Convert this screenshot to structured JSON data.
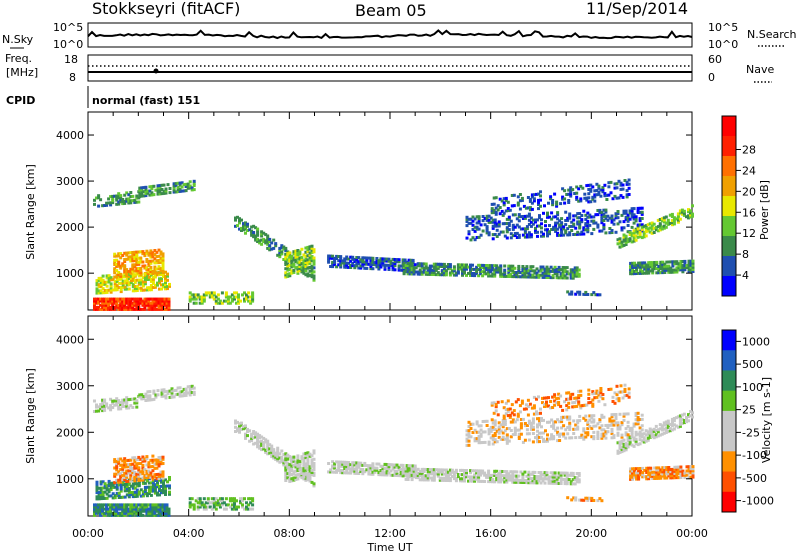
{
  "header": {
    "station": "Stokkseyri (fitACF)",
    "beam": "Beam 05",
    "date": "11/Sep/2014"
  },
  "sky_panel": {
    "left_label": "N.Sky",
    "right_label": "N.Search",
    "top_tick": "10^5",
    "bottom_tick": "10^0",
    "right_top_tick": "10^5",
    "right_bottom_tick": "10^0"
  },
  "freq_panel": {
    "left_label_1": "Freq.",
    "left_label_2": "[MHz]",
    "right_label": "Nave",
    "left_ticks": [
      "18",
      "8"
    ],
    "right_ticks": [
      "60",
      "0"
    ]
  },
  "cpid": {
    "label": "CPID",
    "value": "normal (fast) 151"
  },
  "time_axis": {
    "label": "Time UT",
    "ticks": [
      "00:00",
      "04:00",
      "08:00",
      "12:00",
      "16:00",
      "20:00",
      "00:00"
    ]
  },
  "colors": {
    "power_scale": [
      "#0000ff",
      "#1f4fb0",
      "#3a8a4a",
      "#64c832",
      "#e8e800",
      "#f0a000",
      "#ff7000",
      "#ff2000",
      "#ff0000"
    ],
    "velocity_scale": [
      "#ff0000",
      "#ff5000",
      "#ff9000",
      "#c8c8c8",
      "#c8c8c8",
      "#60c020",
      "#2e8b57",
      "#2060c0",
      "#0000ff"
    ]
  },
  "chart_data": [
    {
      "type": "heatmap",
      "title": "",
      "ylabel": "Slant Range [km]",
      "xlabel": "Time UT",
      "ylim": [
        200,
        4500
      ],
      "x_ticks": [
        "00:00",
        "04:00",
        "08:00",
        "12:00",
        "16:00",
        "20:00",
        "00:00"
      ],
      "y_ticks": [
        1000,
        2000,
        3000,
        4000
      ],
      "colorbar": {
        "label": "Power [dB]",
        "ticks": [
          "4",
          "8",
          "12",
          "16",
          "20",
          "24",
          "28"
        ]
      }
    },
    {
      "type": "heatmap",
      "title": "",
      "ylabel": "Slant Range [km]",
      "xlabel": "Time UT",
      "ylim": [
        200,
        4500
      ],
      "x_ticks": [
        "00:00",
        "04:00",
        "08:00",
        "12:00",
        "16:00",
        "20:00",
        "00:00"
      ],
      "y_ticks": [
        1000,
        2000,
        3000,
        4000
      ],
      "colorbar": {
        "label": "Velocity [m s-1]",
        "ticks": [
          "1000",
          "500",
          "100",
          "25",
          "-25",
          "-100",
          "-500",
          "-1000"
        ]
      }
    }
  ]
}
